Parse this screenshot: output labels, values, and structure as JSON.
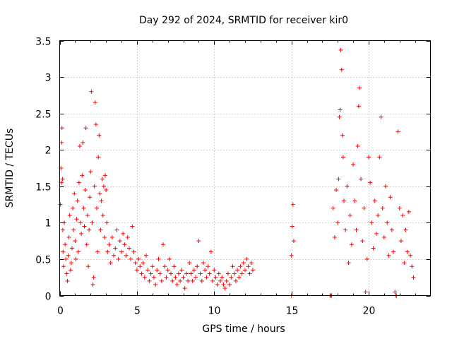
{
  "chart_data": {
    "type": "scatter",
    "title": "Day 292 of 2024, SRMTID for receiver kir0",
    "xlabel": "GPS time / hours",
    "ylabel": "SRMTID / TECUs",
    "xlim": [
      0,
      24
    ],
    "ylim": [
      0,
      3.5
    ],
    "x_ticks": [
      0,
      5,
      10,
      15,
      20
    ],
    "x_tick_labels": [
      "0",
      "5",
      "10",
      "15",
      "20"
    ],
    "y_ticks": [
      0,
      0.5,
      1,
      1.5,
      2,
      2.5,
      3,
      3.5
    ],
    "y_tick_labels": [
      "0",
      "0.5",
      "1",
      "1.5",
      "2",
      "2.5",
      "3",
      "3.5"
    ],
    "grid": true,
    "marker": "+",
    "series": [
      {
        "name": "SRMTID",
        "color": "#ff0000",
        "points": [
          [
            0.05,
            1.25
          ],
          [
            0.08,
            1.75
          ],
          [
            0.1,
            1.55
          ],
          [
            0.12,
            2.1
          ],
          [
            0.15,
            2.3
          ],
          [
            0.18,
            1.6
          ],
          [
            0.2,
            0.9
          ],
          [
            0.22,
            0.6
          ],
          [
            0.25,
            0.4
          ],
          [
            0.3,
            1.0
          ],
          [
            0.35,
            0.7
          ],
          [
            0.4,
            0.5
          ],
          [
            0.45,
            0.3
          ],
          [
            0.5,
            0.2
          ],
          [
            0.55,
            0.55
          ],
          [
            0.6,
            0.8
          ],
          [
            0.65,
            1.1
          ],
          [
            0.7,
            0.35
          ],
          [
            0.75,
            0.45
          ],
          [
            0.8,
            0.65
          ],
          [
            0.85,
            1.2
          ],
          [
            0.9,
            0.9
          ],
          [
            0.95,
            1.4
          ],
          [
            1.0,
            0.75
          ],
          [
            1.05,
            0.5
          ],
          [
            1.1,
            1.05
          ],
          [
            1.15,
            1.3
          ],
          [
            1.2,
            0.6
          ],
          [
            1.25,
            1.55
          ],
          [
            1.3,
            2.05
          ],
          [
            1.35,
            1.0
          ],
          [
            1.4,
            0.85
          ],
          [
            1.45,
            1.65
          ],
          [
            1.5,
            2.1
          ],
          [
            1.55,
            1.2
          ],
          [
            1.6,
            0.95
          ],
          [
            1.65,
            1.45
          ],
          [
            1.7,
            2.3
          ],
          [
            1.75,
            0.7
          ],
          [
            1.8,
            1.1
          ],
          [
            1.85,
            0.4
          ],
          [
            1.9,
            0.9
          ],
          [
            1.95,
            1.35
          ],
          [
            2.0,
            1.7
          ],
          [
            2.05,
            2.8
          ],
          [
            2.1,
            1.0
          ],
          [
            2.15,
            0.15
          ],
          [
            2.2,
            0.25
          ],
          [
            2.25,
            1.5
          ],
          [
            2.3,
            2.65
          ],
          [
            2.35,
            2.35
          ],
          [
            2.4,
            1.2
          ],
          [
            2.45,
            0.6
          ],
          [
            2.5,
            1.9
          ],
          [
            2.55,
            2.2
          ],
          [
            2.6,
            1.4
          ],
          [
            2.65,
            0.9
          ],
          [
            2.7,
            1.3
          ],
          [
            2.75,
            1.6
          ],
          [
            2.8,
            1.1
          ],
          [
            2.85,
            1.5
          ],
          [
            2.9,
            0.8
          ],
          [
            2.95,
            1.65
          ],
          [
            3.0,
            1.45
          ],
          [
            3.05,
            1.0
          ],
          [
            3.1,
            0.6
          ],
          [
            3.2,
            0.7
          ],
          [
            3.3,
            0.45
          ],
          [
            3.4,
            0.8
          ],
          [
            3.5,
            0.55
          ],
          [
            3.6,
            0.65
          ],
          [
            3.7,
            0.9
          ],
          [
            3.8,
            0.5
          ],
          [
            3.9,
            0.75
          ],
          [
            4.0,
            0.6
          ],
          [
            4.1,
            0.85
          ],
          [
            4.2,
            0.7
          ],
          [
            4.3,
            0.55
          ],
          [
            4.4,
            0.8
          ],
          [
            4.5,
            0.65
          ],
          [
            4.6,
            0.5
          ],
          [
            4.7,
            0.95
          ],
          [
            4.8,
            0.6
          ],
          [
            4.9,
            0.45
          ],
          [
            5.0,
            0.35
          ],
          [
            5.1,
            0.5
          ],
          [
            5.2,
            0.4
          ],
          [
            5.3,
            0.3
          ],
          [
            5.4,
            0.45
          ],
          [
            5.5,
            0.25
          ],
          [
            5.6,
            0.55
          ],
          [
            5.7,
            0.35
          ],
          [
            5.8,
            0.2
          ],
          [
            5.9,
            0.3
          ],
          [
            6.0,
            0.4
          ],
          [
            6.1,
            0.25
          ],
          [
            6.2,
            0.15
          ],
          [
            6.3,
            0.35
          ],
          [
            6.4,
            0.5
          ],
          [
            6.5,
            0.3
          ],
          [
            6.6,
            0.2
          ],
          [
            6.7,
            0.7
          ],
          [
            6.8,
            0.4
          ],
          [
            6.9,
            0.25
          ],
          [
            7.0,
            0.35
          ],
          [
            7.1,
            0.5
          ],
          [
            7.2,
            0.3
          ],
          [
            7.3,
            0.2
          ],
          [
            7.4,
            0.4
          ],
          [
            7.5,
            0.25
          ],
          [
            7.6,
            0.15
          ],
          [
            7.7,
            0.3
          ],
          [
            7.8,
            0.2
          ],
          [
            7.9,
            0.35
          ],
          [
            8.0,
            0.25
          ],
          [
            8.1,
            0.1
          ],
          [
            8.2,
            0.3
          ],
          [
            8.3,
            0.2
          ],
          [
            8.4,
            0.45
          ],
          [
            8.5,
            0.3
          ],
          [
            8.6,
            0.2
          ],
          [
            8.7,
            0.35
          ],
          [
            8.8,
            0.25
          ],
          [
            8.9,
            0.4
          ],
          [
            9.0,
            0.75
          ],
          [
            9.1,
            0.3
          ],
          [
            9.2,
            0.2
          ],
          [
            9.3,
            0.45
          ],
          [
            9.4,
            0.35
          ],
          [
            9.5,
            0.25
          ],
          [
            9.6,
            0.4
          ],
          [
            9.7,
            0.3
          ],
          [
            9.8,
            0.6
          ],
          [
            9.9,
            0.2
          ],
          [
            10.0,
            0.35
          ],
          [
            10.1,
            0.25
          ],
          [
            10.2,
            0.15
          ],
          [
            10.3,
            0.3
          ],
          [
            10.4,
            0.2
          ],
          [
            10.5,
            0.25
          ],
          [
            10.6,
            0.15
          ],
          [
            10.7,
            0.1
          ],
          [
            10.8,
            0.2
          ],
          [
            10.9,
            0.3
          ],
          [
            11.0,
            0.15
          ],
          [
            11.1,
            0.25
          ],
          [
            11.2,
            0.4
          ],
          [
            11.3,
            0.3
          ],
          [
            11.4,
            0.2
          ],
          [
            11.5,
            0.35
          ],
          [
            11.6,
            0.25
          ],
          [
            11.7,
            0.4
          ],
          [
            11.8,
            0.3
          ],
          [
            11.9,
            0.45
          ],
          [
            12.0,
            0.35
          ],
          [
            12.1,
            0.5
          ],
          [
            12.2,
            0.4
          ],
          [
            12.3,
            0.3
          ],
          [
            12.4,
            0.45
          ],
          [
            12.5,
            0.35
          ],
          [
            15.0,
            0.0
          ],
          [
            15.0,
            0.55
          ],
          [
            15.05,
            0.95
          ],
          [
            15.1,
            1.25
          ],
          [
            15.15,
            0.75
          ],
          [
            17.5,
            0.0
          ],
          [
            17.55,
            0.0
          ],
          [
            17.6,
            0.0
          ],
          [
            17.7,
            1.2
          ],
          [
            17.8,
            0.8
          ],
          [
            17.9,
            1.45
          ],
          [
            18.0,
            1.0
          ],
          [
            18.05,
            1.6
          ],
          [
            18.1,
            2.45
          ],
          [
            18.15,
            2.55
          ],
          [
            18.2,
            3.37
          ],
          [
            18.25,
            3.1
          ],
          [
            18.3,
            2.2
          ],
          [
            18.35,
            1.9
          ],
          [
            18.4,
            1.3
          ],
          [
            18.5,
            0.9
          ],
          [
            18.6,
            1.5
          ],
          [
            18.7,
            0.45
          ],
          [
            18.8,
            1.1
          ],
          [
            18.9,
            0.7
          ],
          [
            19.0,
            1.8
          ],
          [
            19.1,
            1.3
          ],
          [
            19.2,
            0.9
          ],
          [
            19.3,
            2.05
          ],
          [
            19.35,
            2.6
          ],
          [
            19.4,
            2.85
          ],
          [
            19.5,
            1.6
          ],
          [
            19.6,
            0.75
          ],
          [
            19.7,
            1.2
          ],
          [
            19.8,
            0.05
          ],
          [
            19.9,
            0.5
          ],
          [
            20.0,
            1.9
          ],
          [
            20.1,
            1.55
          ],
          [
            20.2,
            1.0
          ],
          [
            20.3,
            0.65
          ],
          [
            20.4,
            1.3
          ],
          [
            20.5,
            0.85
          ],
          [
            20.6,
            1.1
          ],
          [
            20.7,
            1.9
          ],
          [
            20.8,
            2.45
          ],
          [
            20.9,
            1.2
          ],
          [
            21.0,
            0.8
          ],
          [
            21.1,
            1.5
          ],
          [
            21.2,
            1.0
          ],
          [
            21.3,
            0.55
          ],
          [
            21.4,
            1.35
          ],
          [
            21.5,
            0.9
          ],
          [
            21.6,
            0.6
          ],
          [
            21.7,
            0.05
          ],
          [
            21.75,
            0.0
          ],
          [
            21.8,
            0.0
          ],
          [
            21.9,
            2.25
          ],
          [
            22.0,
            1.2
          ],
          [
            22.1,
            0.75
          ],
          [
            22.2,
            1.1
          ],
          [
            22.3,
            0.45
          ],
          [
            22.4,
            0.9
          ],
          [
            22.5,
            0.6
          ],
          [
            22.6,
            1.15
          ],
          [
            22.7,
            0.55
          ],
          [
            22.8,
            0.4
          ],
          [
            22.9,
            0.25
          ]
        ]
      }
    ]
  }
}
